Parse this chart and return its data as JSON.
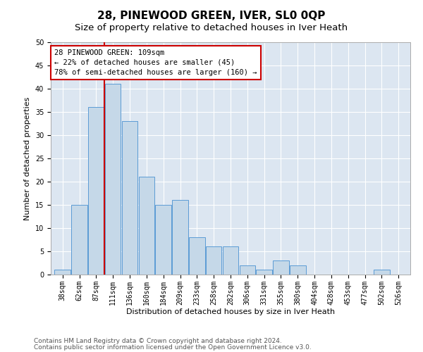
{
  "title": "28, PINEWOOD GREEN, IVER, SL0 0QP",
  "subtitle": "Size of property relative to detached houses in Iver Heath",
  "xlabel": "Distribution of detached houses by size in Iver Heath",
  "ylabel": "Number of detached properties",
  "categories": [
    "38sqm",
    "62sqm",
    "87sqm",
    "111sqm",
    "136sqm",
    "160sqm",
    "184sqm",
    "209sqm",
    "233sqm",
    "258sqm",
    "282sqm",
    "306sqm",
    "331sqm",
    "355sqm",
    "380sqm",
    "404sqm",
    "428sqm",
    "453sqm",
    "477sqm",
    "502sqm",
    "526sqm"
  ],
  "values": [
    1,
    15,
    36,
    41,
    33,
    21,
    15,
    16,
    8,
    6,
    6,
    2,
    1,
    3,
    2,
    0,
    0,
    0,
    0,
    1,
    0
  ],
  "bar_color": "#c5d8e8",
  "bar_edge_color": "#5b9bd5",
  "annotation_text": "28 PINEWOOD GREEN: 109sqm\n← 22% of detached houses are smaller (45)\n78% of semi-detached houses are larger (160) →",
  "annotation_box_color": "#ffffff",
  "annotation_box_edge": "#cc0000",
  "property_line_color": "#cc0000",
  "ylim": [
    0,
    50
  ],
  "yticks": [
    0,
    5,
    10,
    15,
    20,
    25,
    30,
    35,
    40,
    45,
    50
  ],
  "bg_color": "#dce6f1",
  "footer1": "Contains HM Land Registry data © Crown copyright and database right 2024.",
  "footer2": "Contains public sector information licensed under the Open Government Licence v3.0.",
  "title_fontsize": 11,
  "subtitle_fontsize": 9.5,
  "axis_label_fontsize": 8,
  "tick_fontsize": 7,
  "annotation_fontsize": 7.5,
  "footer_fontsize": 6.5
}
